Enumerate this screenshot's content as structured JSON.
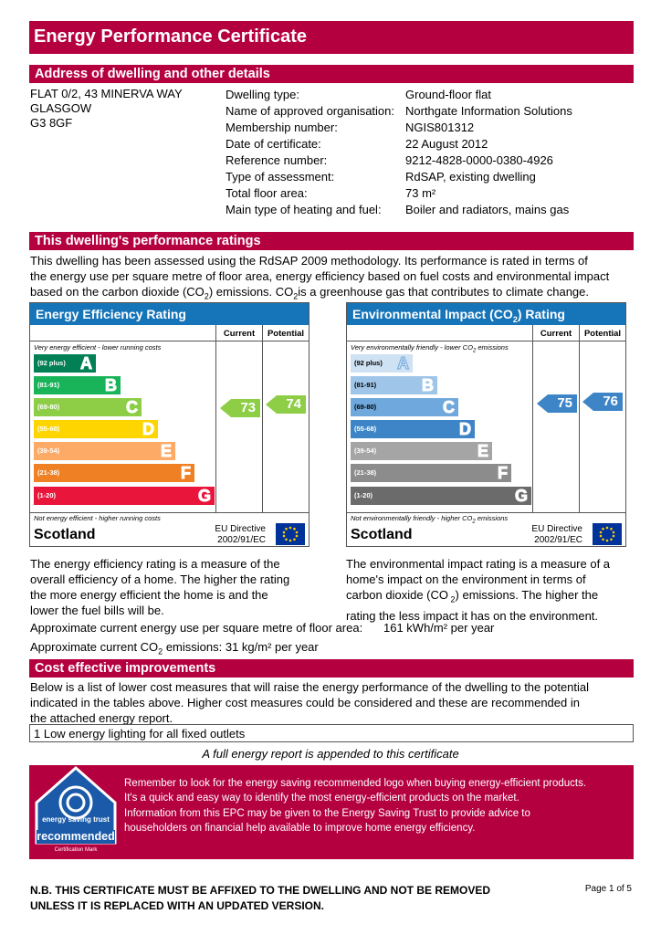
{
  "title": "Energy Performance Certificate",
  "address_section": {
    "heading": "Address of dwelling and other details",
    "address_lines": [
      "FLAT 0/2, 43 MINERVA WAY",
      "GLASGOW",
      "G3 8GF"
    ],
    "details": [
      {
        "label": "Dwelling type:",
        "value": "Ground-floor flat"
      },
      {
        "label": "Name of approved organisation:",
        "value": "Northgate Information Solutions"
      },
      {
        "label": "Membership number:",
        "value": "NGIS801312"
      },
      {
        "label": "Date of certificate:",
        "value": "22 August 2012"
      },
      {
        "label": "Reference number:",
        "value": "9212-4828-0000-0380-4926"
      },
      {
        "label": "Type of assessment:",
        "value": "RdSAP, existing dwelling"
      },
      {
        "label": "Total floor area:",
        "value": "73 m²"
      },
      {
        "label": "Main type of heating and fuel:",
        "value": "Boiler and radiators, mains gas"
      }
    ]
  },
  "performance_section": {
    "heading": "This dwelling's performance ratings",
    "intro_1": "This dwelling has been assessed using the RdSAP 2009 methodology.  Its performance is rated in terms of",
    "intro_2": "the energy use per square metre of floor area, energy efficiency based on fuel costs and environmental impact",
    "intro_3a": "based on the carbon dioxide (CO",
    "intro_3b": ") emissions.  CO",
    "intro_3c": "is a greenhouse gas that contributes to climate change.",
    "sub2": "2"
  },
  "efficiency": {
    "heading": "Energy Efficiency Rating",
    "col_current": "Current",
    "col_potential": "Potential",
    "top_note": "Very energy efficient - lower running costs",
    "bottom_note": "Not energy efficient - higher running costs",
    "bands": [
      {
        "range": "(92 plus)",
        "letter": "A",
        "color": "#008054"
      },
      {
        "range": "(81-91)",
        "letter": "B",
        "color": "#19b459"
      },
      {
        "range": "(69-80)",
        "letter": "C",
        "color": "#8dce46"
      },
      {
        "range": "(55-68)",
        "letter": "D",
        "color": "#ffd500"
      },
      {
        "range": "(39-54)",
        "letter": "E",
        "color": "#fcaa65"
      },
      {
        "range": "(21-38)",
        "letter": "F",
        "color": "#ef8023"
      },
      {
        "range": "(1-20)",
        "letter": "G",
        "color": "#e9153b"
      }
    ],
    "current": "73",
    "potential": "74",
    "current_color": "#8dce46",
    "potential_color": "#8dce46",
    "country": "Scotland",
    "eu_line1": "EU Directive",
    "eu_line2": "2002/91/EC"
  },
  "environmental": {
    "heading_a": "Environmental Impact (CO",
    "heading_b": ") Rating",
    "col_current": "Current",
    "col_potential": "Potential",
    "top_note_a": "Very environmentally friendly - lower CO",
    "top_note_b": " emissions",
    "bottom_note_a": "Not environmentally friendly - higher CO",
    "bottom_note_b": " emissions",
    "bands": [
      {
        "range": "(92 plus)",
        "letter": "A",
        "color": "#cfe2f3"
      },
      {
        "range": "(81-91)",
        "letter": "B",
        "color": "#9fc5e8"
      },
      {
        "range": "(69-80)",
        "letter": "C",
        "color": "#6fa8dc"
      },
      {
        "range": "(55-68)",
        "letter": "D",
        "color": "#3d85c6"
      },
      {
        "range": "(39-54)",
        "letter": "E",
        "color": "#a5a5a5"
      },
      {
        "range": "(21-38)",
        "letter": "F",
        "color": "#8c8c8c"
      },
      {
        "range": "(1-20)",
        "letter": "G",
        "color": "#6b6b6b"
      }
    ],
    "current": "75",
    "potential": "76",
    "current_color": "#3d85c6",
    "potential_color": "#3d85c6",
    "country": "Scotland",
    "eu_line1": "EU Directive",
    "eu_line2": "2002/91/EC"
  },
  "efficiency_desc": [
    "The energy efficiency rating is a measure of the",
    "overall efficiency of a home. The higher the rating",
    "the more energy efficient the home is and the",
    "lower the fuel bills will be."
  ],
  "env_desc_1": "The environmental impact rating is a measure of a",
  "env_desc_2": "home's impact on the environment in terms of",
  "env_desc_3a": "carbon dioxide (CO",
  "env_desc_3b": ") emissions. The higher the",
  "env_desc_4": "rating the less impact it has on the environment.",
  "energy_use_label": "Approximate current energy use per square metre of floor area:",
  "energy_use_value": "161 kWh/m² per year",
  "co2_label_a": "Approximate current CO",
  "co2_label_b": "emissions:",
  "co2_value": "31 kg/m² per year",
  "improvements": {
    "heading": "Cost effective improvements",
    "intro": [
      "Below is a list of lower cost measures that will raise the energy performance of the dwelling to the potential",
      "indicated in the tables above.  Higher cost measures could be considered and these are recommended in",
      "the attached energy report."
    ],
    "measure": "1 Low energy lighting for all fixed outlets"
  },
  "report_note": "A full energy report is appended to this certificate",
  "recommended": {
    "logo_top": "energy saving trust",
    "logo_word": "recommended",
    "logo_small": "Certification Mark",
    "para1": [
      "Remember to look for the energy saving recommended logo when buying energy-efficient products.",
      "It's a quick and easy way to identify the most energy-efficient products on the market."
    ],
    "para2": [
      "Information from this EPC may be given to the Energy Saving Trust to provide advice to",
      "householders on financial help available to improve home energy efficiency."
    ]
  },
  "footer": {
    "nb_1": "N.B. THIS CERTIFICATE MUST BE AFFIXED TO THE DWELLING AND NOT BE REMOVED",
    "nb_2": "UNLESS IT IS REPLACED WITH AN UPDATED VERSION.",
    "page": "Page  1  of 5"
  }
}
